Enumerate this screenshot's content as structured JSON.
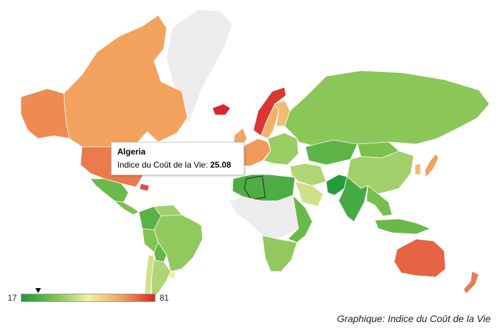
{
  "map": {
    "type": "choropleth",
    "regions": [
      {
        "id": "greenland",
        "name": "Greenland",
        "value": null
      },
      {
        "id": "canada",
        "name": "Canada",
        "value": 65
      },
      {
        "id": "alaska",
        "name": "United States (Alaska)",
        "value": 68
      },
      {
        "id": "usa",
        "name": "United States",
        "value": 70
      },
      {
        "id": "mexico",
        "name": "Mexico",
        "value": 30
      },
      {
        "id": "central-america",
        "name": "Central America",
        "value": 33
      },
      {
        "id": "caribbean",
        "name": "Bahamas",
        "value": 76
      },
      {
        "id": "colombia",
        "name": "Colombia",
        "value": 27
      },
      {
        "id": "venezuela",
        "name": "Venezuela",
        "value": 38
      },
      {
        "id": "brazil",
        "name": "Brazil",
        "value": 36
      },
      {
        "id": "peru",
        "name": "Peru",
        "value": 34
      },
      {
        "id": "bolivia",
        "name": "Bolivia",
        "value": 29
      },
      {
        "id": "argentina",
        "name": "Argentina",
        "value": 40
      },
      {
        "id": "chile",
        "name": "Chile",
        "value": 44
      },
      {
        "id": "uruguay",
        "name": "Uruguay",
        "value": 48
      },
      {
        "id": "iceland",
        "name": "Iceland",
        "value": 81
      },
      {
        "id": "norway",
        "name": "Norway",
        "value": 79
      },
      {
        "id": "sweden",
        "name": "Sweden",
        "value": 62
      },
      {
        "id": "finland",
        "name": "Finland",
        "value": 60
      },
      {
        "id": "uk",
        "name": "United Kingdom",
        "value": 64
      },
      {
        "id": "western-europe",
        "name": "Western Europe",
        "value": 66
      },
      {
        "id": "eastern-europe",
        "name": "Eastern Europe",
        "value": 37
      },
      {
        "id": "russia",
        "name": "Russia",
        "value": 35
      },
      {
        "id": "kazakhstan",
        "name": "Kazakhstan",
        "value": 28
      },
      {
        "id": "china",
        "name": "China",
        "value": 38
      },
      {
        "id": "mongolia",
        "name": "Mongolia",
        "value": 33
      },
      {
        "id": "japan",
        "name": "Japan",
        "value": 65
      },
      {
        "id": "korea",
        "name": "South Korea",
        "value": 60
      },
      {
        "id": "india",
        "name": "India",
        "value": 24
      },
      {
        "id": "pakistan",
        "name": "Pakistan",
        "value": 18
      },
      {
        "id": "middle-east",
        "name": "Middle East",
        "value": 40
      },
      {
        "id": "saudi-arabia",
        "name": "Saudi Arabia",
        "value": 44
      },
      {
        "id": "north-africa",
        "name": "North Africa",
        "value": 25
      },
      {
        "id": "algeria",
        "name": "Algeria",
        "value": 25.08
      },
      {
        "id": "central-africa",
        "name": "Central Africa",
        "value": null
      },
      {
        "id": "east-africa",
        "name": "East Africa",
        "value": 30
      },
      {
        "id": "southern-africa",
        "name": "Southern Africa",
        "value": 36
      },
      {
        "id": "southeast-asia",
        "name": "Southeast Asia",
        "value": 32
      },
      {
        "id": "indonesia",
        "name": "Indonesia",
        "value": 30
      },
      {
        "id": "australia",
        "name": "Australia",
        "value": 73
      },
      {
        "id": "new-zealand",
        "name": "New Zealand",
        "value": 70
      }
    ]
  },
  "tooltip": {
    "country": "Algeria",
    "label": "Indice du Coût de la Vie: ",
    "value": "25.08"
  },
  "legend": {
    "min": "17",
    "max": "81",
    "marker_value": 25.08,
    "colors": [
      "#1e9a3c",
      "#7cc04e",
      "#f3f0a4",
      "#f2a25c",
      "#d8262c"
    ],
    "no_data_color": "#ececec"
  },
  "caption": "Graphique: Indice du Coût de la Vie"
}
